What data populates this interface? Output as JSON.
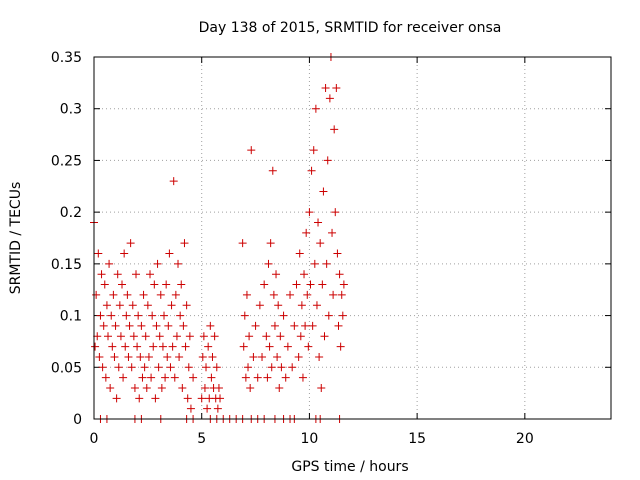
{
  "chart_data": {
    "type": "scatter",
    "title": "Day 138 of 2015, SRMTID for receiver onsa",
    "xlabel": "GPS time / hours",
    "ylabel": "SRMTID / TECUs",
    "xlim": [
      0,
      24
    ],
    "ylim": [
      0,
      0.35
    ],
    "xticks": [
      0,
      5,
      10,
      15,
      20
    ],
    "xtick_labels": [
      "0",
      "5",
      "10",
      "15",
      "20"
    ],
    "yticks": [
      0,
      0.05,
      0.1,
      0.15,
      0.2,
      0.25,
      0.3,
      0.35
    ],
    "ytick_labels": [
      "0",
      "0.05",
      "0.1",
      "0.15",
      "0.2",
      "0.25",
      "0.3",
      "0.35"
    ],
    "grid": true,
    "marker": "+",
    "series": [
      {
        "name": "SRMTID",
        "color": "#cc0000",
        "points": [
          [
            0.0,
            0.19
          ],
          [
            0.05,
            0.07
          ],
          [
            0.1,
            0.12
          ],
          [
            0.15,
            0.08
          ],
          [
            0.2,
            0.16
          ],
          [
            0.25,
            0.06
          ],
          [
            0.3,
            0.1
          ],
          [
            0.35,
            0.14
          ],
          [
            0.4,
            0.05
          ],
          [
            0.45,
            0.09
          ],
          [
            0.5,
            0.13
          ],
          [
            0.55,
            0.04
          ],
          [
            0.6,
            0.11
          ],
          [
            0.65,
            0.08
          ],
          [
            0.7,
            0.15
          ],
          [
            0.75,
            0.03
          ],
          [
            0.8,
            0.1
          ],
          [
            0.85,
            0.07
          ],
          [
            0.9,
            0.12
          ],
          [
            0.95,
            0.06
          ],
          [
            1.0,
            0.09
          ],
          [
            1.05,
            0.02
          ],
          [
            1.1,
            0.14
          ],
          [
            1.15,
            0.05
          ],
          [
            1.2,
            0.11
          ],
          [
            1.25,
            0.08
          ],
          [
            1.3,
            0.13
          ],
          [
            1.35,
            0.04
          ],
          [
            1.4,
            0.16
          ],
          [
            1.45,
            0.07
          ],
          [
            1.5,
            0.1
          ],
          [
            1.55,
            0.12
          ],
          [
            1.6,
            0.06
          ],
          [
            1.65,
            0.09
          ],
          [
            1.7,
            0.17
          ],
          [
            1.75,
            0.05
          ],
          [
            1.8,
            0.11
          ],
          [
            1.85,
            0.08
          ],
          [
            1.9,
            0.03
          ],
          [
            1.95,
            0.14
          ],
          [
            2.0,
            0.07
          ],
          [
            2.05,
            0.1
          ],
          [
            2.1,
            0.02
          ],
          [
            2.15,
            0.06
          ],
          [
            2.2,
            0.09
          ],
          [
            2.25,
            0.04
          ],
          [
            2.3,
            0.12
          ],
          [
            2.35,
            0.05
          ],
          [
            2.4,
            0.08
          ],
          [
            2.45,
            0.03
          ],
          [
            2.5,
            0.11
          ],
          [
            2.55,
            0.06
          ],
          [
            2.6,
            0.14
          ],
          [
            2.65,
            0.04
          ],
          [
            2.7,
            0.1
          ],
          [
            2.75,
            0.07
          ],
          [
            2.8,
            0.13
          ],
          [
            2.85,
            0.02
          ],
          [
            2.9,
            0.09
          ],
          [
            2.95,
            0.15
          ],
          [
            3.0,
            0.05
          ],
          [
            3.05,
            0.08
          ],
          [
            3.1,
            0.12
          ],
          [
            3.15,
            0.03
          ],
          [
            3.2,
            0.07
          ],
          [
            3.25,
            0.1
          ],
          [
            3.3,
            0.04
          ],
          [
            3.35,
            0.13
          ],
          [
            3.4,
            0.06
          ],
          [
            3.45,
            0.09
          ],
          [
            3.5,
            0.16
          ],
          [
            3.55,
            0.05
          ],
          [
            3.6,
            0.11
          ],
          [
            3.65,
            0.07
          ],
          [
            3.7,
            0.23
          ],
          [
            3.75,
            0.04
          ],
          [
            3.8,
            0.12
          ],
          [
            3.85,
            0.08
          ],
          [
            3.9,
            0.15
          ],
          [
            3.95,
            0.06
          ],
          [
            4.0,
            0.1
          ],
          [
            4.05,
            0.13
          ],
          [
            4.1,
            0.03
          ],
          [
            4.15,
            0.09
          ],
          [
            4.2,
            0.17
          ],
          [
            4.25,
            0.07
          ],
          [
            4.3,
            0.11
          ],
          [
            4.35,
            0.02
          ],
          [
            4.4,
            0.05
          ],
          [
            4.45,
            0.08
          ],
          [
            4.5,
            0.01
          ],
          [
            4.6,
            0.04
          ],
          [
            5.0,
            0.02
          ],
          [
            5.05,
            0.06
          ],
          [
            5.1,
            0.08
          ],
          [
            5.15,
            0.03
          ],
          [
            5.2,
            0.05
          ],
          [
            5.25,
            0.01
          ],
          [
            5.3,
            0.07
          ],
          [
            5.35,
            0.02
          ],
          [
            5.4,
            0.09
          ],
          [
            5.45,
            0.04
          ],
          [
            5.5,
            0.06
          ],
          [
            5.55,
            0.03
          ],
          [
            5.6,
            0.08
          ],
          [
            5.65,
            0.02
          ],
          [
            5.7,
            0.05
          ],
          [
            5.75,
            0.01
          ],
          [
            5.8,
            0.03
          ],
          [
            5.85,
            0.02
          ],
          [
            6.9,
            0.17
          ],
          [
            6.95,
            0.07
          ],
          [
            7.0,
            0.1
          ],
          [
            7.05,
            0.04
          ],
          [
            7.1,
            0.12
          ],
          [
            7.15,
            0.05
          ],
          [
            7.2,
            0.08
          ],
          [
            7.25,
            0.03
          ],
          [
            7.3,
            0.26
          ],
          [
            7.4,
            0.06
          ],
          [
            7.5,
            0.09
          ],
          [
            7.6,
            0.04
          ],
          [
            7.7,
            0.11
          ],
          [
            7.8,
            0.06
          ],
          [
            7.9,
            0.13
          ],
          [
            8.0,
            0.08
          ],
          [
            8.05,
            0.04
          ],
          [
            8.1,
            0.15
          ],
          [
            8.15,
            0.07
          ],
          [
            8.2,
            0.17
          ],
          [
            8.25,
            0.05
          ],
          [
            8.3,
            0.24
          ],
          [
            8.35,
            0.12
          ],
          [
            8.4,
            0.09
          ],
          [
            8.45,
            0.14
          ],
          [
            8.5,
            0.06
          ],
          [
            8.55,
            0.11
          ],
          [
            8.6,
            0.03
          ],
          [
            8.65,
            0.08
          ],
          [
            8.7,
            0.05
          ],
          [
            8.8,
            0.1
          ],
          [
            8.9,
            0.04
          ],
          [
            9.0,
            0.07
          ],
          [
            9.1,
            0.12
          ],
          [
            9.2,
            0.05
          ],
          [
            9.3,
            0.09
          ],
          [
            9.4,
            0.13
          ],
          [
            9.5,
            0.06
          ],
          [
            9.55,
            0.16
          ],
          [
            9.6,
            0.08
          ],
          [
            9.65,
            0.11
          ],
          [
            9.7,
            0.04
          ],
          [
            9.75,
            0.14
          ],
          [
            9.8,
            0.09
          ],
          [
            9.85,
            0.18
          ],
          [
            9.9,
            0.12
          ],
          [
            9.95,
            0.07
          ],
          [
            10.0,
            0.2
          ],
          [
            10.05,
            0.13
          ],
          [
            10.1,
            0.24
          ],
          [
            10.15,
            0.09
          ],
          [
            10.2,
            0.26
          ],
          [
            10.25,
            0.15
          ],
          [
            10.3,
            0.3
          ],
          [
            10.35,
            0.11
          ],
          [
            10.4,
            0.19
          ],
          [
            10.45,
            0.06
          ],
          [
            10.5,
            0.17
          ],
          [
            10.55,
            0.03
          ],
          [
            10.6,
            0.13
          ],
          [
            10.65,
            0.22
          ],
          [
            10.7,
            0.08
          ],
          [
            10.75,
            0.32
          ],
          [
            10.8,
            0.15
          ],
          [
            10.85,
            0.25
          ],
          [
            10.9,
            0.1
          ],
          [
            10.95,
            0.31
          ],
          [
            11.0,
            0.35
          ],
          [
            11.05,
            0.18
          ],
          [
            11.1,
            0.12
          ],
          [
            11.15,
            0.28
          ],
          [
            11.2,
            0.2
          ],
          [
            11.25,
            0.32
          ],
          [
            11.3,
            0.16
          ],
          [
            11.35,
            0.09
          ],
          [
            11.4,
            0.14
          ],
          [
            11.45,
            0.07
          ],
          [
            11.5,
            0.12
          ],
          [
            11.55,
            0.1
          ],
          [
            11.6,
            0.13
          ],
          [
            0.3,
            0.0
          ],
          [
            0.6,
            0.0
          ],
          [
            1.9,
            0.0
          ],
          [
            2.2,
            0.0
          ],
          [
            3.1,
            0.0
          ],
          [
            4.3,
            0.0
          ],
          [
            4.6,
            0.0
          ],
          [
            5.4,
            0.0
          ],
          [
            5.7,
            0.0
          ],
          [
            6.0,
            0.0
          ],
          [
            6.3,
            0.0
          ],
          [
            6.6,
            0.0
          ],
          [
            6.9,
            0.0
          ],
          [
            7.3,
            0.0
          ],
          [
            7.6,
            0.0
          ],
          [
            7.9,
            0.0
          ],
          [
            8.4,
            0.0
          ],
          [
            8.8,
            0.0
          ],
          [
            9.1,
            0.0
          ],
          [
            9.3,
            0.0
          ],
          [
            10.3,
            0.0
          ],
          [
            10.5,
            0.0
          ],
          [
            11.4,
            0.0
          ]
        ]
      }
    ]
  }
}
